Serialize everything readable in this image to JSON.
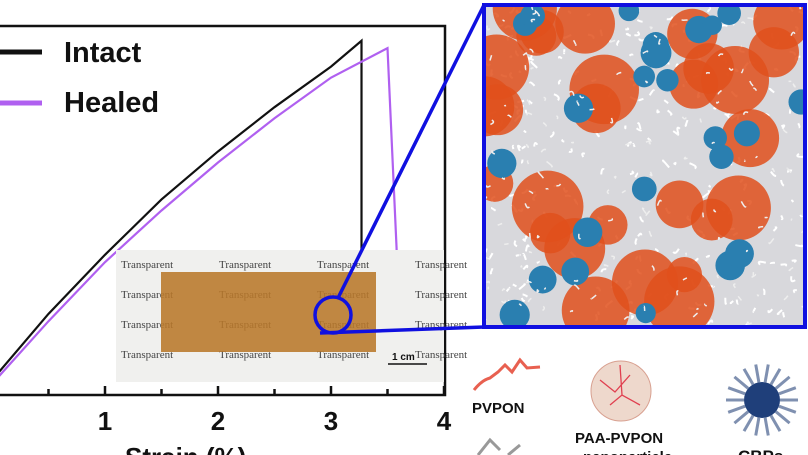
{
  "chart_data": {
    "type": "line",
    "xlabel": "Strain (%)",
    "ylabel": "",
    "xlim": [
      -0.07,
      4
    ],
    "ylim": [
      0,
      1
    ],
    "x_ticks": [
      "1",
      "2",
      "3",
      "4"
    ],
    "grid": false,
    "legend_position": "top-left",
    "series": [
      {
        "name": "Intact",
        "color": "#111111",
        "x": [
          0,
          0.5,
          1,
          1.5,
          2,
          2.5,
          3,
          3.27,
          3.27
        ],
        "y": [
          0.04,
          0.22,
          0.38,
          0.53,
          0.66,
          0.78,
          0.89,
          0.96,
          0.36
        ]
      },
      {
        "name": "Healed",
        "color": "#b060f0",
        "x": [
          0,
          0.5,
          1,
          1.5,
          2,
          2.5,
          3,
          3.5,
          3.58,
          3.6
        ],
        "y": [
          0.03,
          0.2,
          0.36,
          0.5,
          0.63,
          0.75,
          0.86,
          0.94,
          0.4,
          0.2
        ]
      }
    ]
  },
  "inset_photo": {
    "watermark_text": "Transparent",
    "scale_bar": "1 cm"
  },
  "legend_items": {
    "pvpon": "PVPON",
    "paa_pvpon": "PAA-PVPON",
    "paa_pvpon_sub": "nanoparticle",
    "cbps": "CBPs"
  },
  "colors": {
    "zoom_box": "#1010e0",
    "paa": "#e0501c",
    "cbp": "#2a7fb0"
  }
}
